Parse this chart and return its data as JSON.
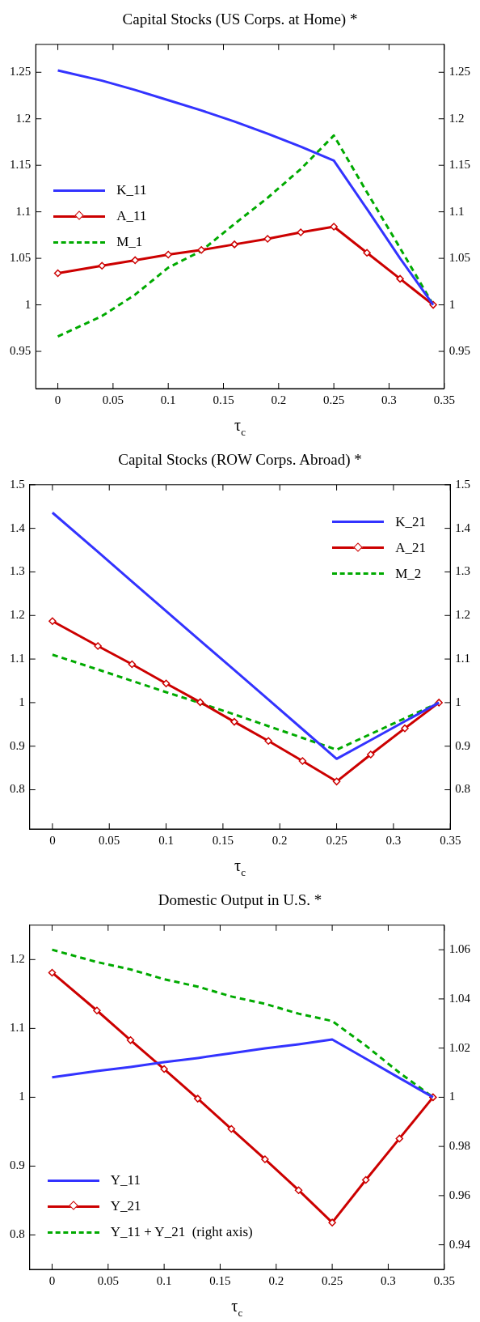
{
  "chart_data": [
    {
      "type": "line",
      "title": "Capital Stocks (US Corps. at Home) *",
      "xlabel": "τ$_{c}$",
      "x": [
        0,
        0.04,
        0.07,
        0.1,
        0.13,
        0.16,
        0.19,
        0.22,
        0.25,
        0.28,
        0.31,
        0.34
      ],
      "series": [
        {
          "name": "K_11",
          "color": "#3333ff",
          "marker": "none",
          "line_style": "solid",
          "values": [
            1.252,
            1.241,
            1.231,
            1.22,
            1.209,
            1.197,
            1.184,
            1.17,
            1.155,
            1.103,
            1.05,
            1.0
          ]
        },
        {
          "name": "A_11",
          "color": "#cc0000",
          "marker": "diamond",
          "line_style": "solid",
          "values": [
            1.034,
            1.042,
            1.048,
            1.054,
            1.059,
            1.065,
            1.071,
            1.078,
            1.084,
            1.056,
            1.028,
            1.0
          ]
        },
        {
          "name": "M_1",
          "color": "#00aa00",
          "marker": "none",
          "line_style": "dashed",
          "values": [
            0.966,
            0.988,
            1.011,
            1.04,
            1.058,
            1.087,
            1.115,
            1.146,
            1.182,
            1.121,
            1.061,
            1.0
          ]
        }
      ],
      "xlim": [
        -0.02,
        0.35
      ],
      "xticks": [
        0,
        0.05,
        0.1,
        0.15,
        0.2,
        0.25,
        0.3,
        0.35
      ],
      "ylim": [
        0.91,
        1.28
      ],
      "yticks": [
        0.95,
        1,
        1.05,
        1.1,
        1.15,
        1.2,
        1.25
      ],
      "y2lim": [
        0.91,
        1.28
      ],
      "y2ticks": [
        0.95,
        1,
        1.05,
        1.1,
        1.15,
        1.2,
        1.25
      ],
      "grid": false,
      "legend": "left"
    },
    {
      "type": "line",
      "title": "Capital Stocks (ROW Corps. Abroad) *",
      "xlabel": "τ$_{c}$",
      "x": [
        0,
        0.04,
        0.07,
        0.1,
        0.13,
        0.16,
        0.19,
        0.22,
        0.25,
        0.28,
        0.31,
        0.34
      ],
      "series": [
        {
          "name": "K_21",
          "color": "#3333ff",
          "marker": "none",
          "line_style": "solid",
          "values": [
            1.436,
            1.346,
            1.278,
            1.21,
            1.142,
            1.075,
            1.007,
            0.939,
            0.871,
            0.914,
            0.957,
            1.0
          ]
        },
        {
          "name": "A_21",
          "color": "#cc0000",
          "marker": "diamond",
          "line_style": "solid",
          "values": [
            1.187,
            1.13,
            1.088,
            1.044,
            1.001,
            0.956,
            0.912,
            0.866,
            0.819,
            0.881,
            0.941,
            1.0
          ]
        },
        {
          "name": "M_2",
          "color": "#00aa00",
          "marker": "none",
          "line_style": "dashed",
          "values": [
            1.11,
            1.076,
            1.05,
            1.024,
            0.999,
            0.973,
            0.946,
            0.919,
            0.892,
            0.928,
            0.964,
            1.0
          ]
        }
      ],
      "xlim": [
        -0.02,
        0.35
      ],
      "xticks": [
        0,
        0.05,
        0.1,
        0.15,
        0.2,
        0.25,
        0.3,
        0.35
      ],
      "ylim": [
        0.71,
        1.5
      ],
      "yticks": [
        0.8,
        0.9,
        1,
        1.1,
        1.2,
        1.3,
        1.4,
        1.5
      ],
      "y2lim": [
        0.71,
        1.5
      ],
      "y2ticks": [
        0.8,
        0.9,
        1,
        1.1,
        1.2,
        1.3,
        1.4,
        1.5
      ],
      "grid": false,
      "legend": "top right"
    },
    {
      "type": "line",
      "title": "Domestic Output in U.S. *",
      "xlabel": "τ$_{c}$",
      "x": [
        0,
        0.04,
        0.07,
        0.1,
        0.13,
        0.16,
        0.19,
        0.22,
        0.25,
        0.28,
        0.31,
        0.34
      ],
      "series": [
        {
          "name": "Y_11",
          "color": "#3333ff",
          "marker": "none",
          "line_style": "solid",
          "values": [
            1.029,
            1.038,
            1.044,
            1.051,
            1.057,
            1.064,
            1.071,
            1.077,
            1.084,
            1.056,
            1.028,
            1.0
          ]
        },
        {
          "name": "Y_21",
          "color": "#cc0000",
          "marker": "diamond",
          "line_style": "solid",
          "values": [
            1.181,
            1.126,
            1.083,
            1.041,
            0.998,
            0.954,
            0.91,
            0.865,
            0.818,
            0.88,
            0.94,
            1.0
          ]
        },
        {
          "name": "Y_11 + Y_21  (right axis)",
          "color": "#00aa00",
          "marker": "none",
          "line_style": "dashed",
          "axis": "y2",
          "values": [
            1.06,
            1.055,
            1.052,
            1.048,
            1.045,
            1.041,
            1.038,
            1.034,
            1.031,
            1.021,
            1.01,
            1.0
          ]
        }
      ],
      "xlim": [
        -0.02,
        0.35
      ],
      "xticks": [
        0,
        0.05,
        0.1,
        0.15,
        0.2,
        0.25,
        0.3,
        0.35
      ],
      "ylim": [
        0.75,
        1.25
      ],
      "yticks": [
        0.8,
        0.9,
        1,
        1.1,
        1.2
      ],
      "y2lim": [
        0.93,
        1.07
      ],
      "y2ticks": [
        0.94,
        0.96,
        0.98,
        1,
        1.02,
        1.04,
        1.06
      ],
      "grid": false,
      "legend": "bottom left"
    }
  ]
}
